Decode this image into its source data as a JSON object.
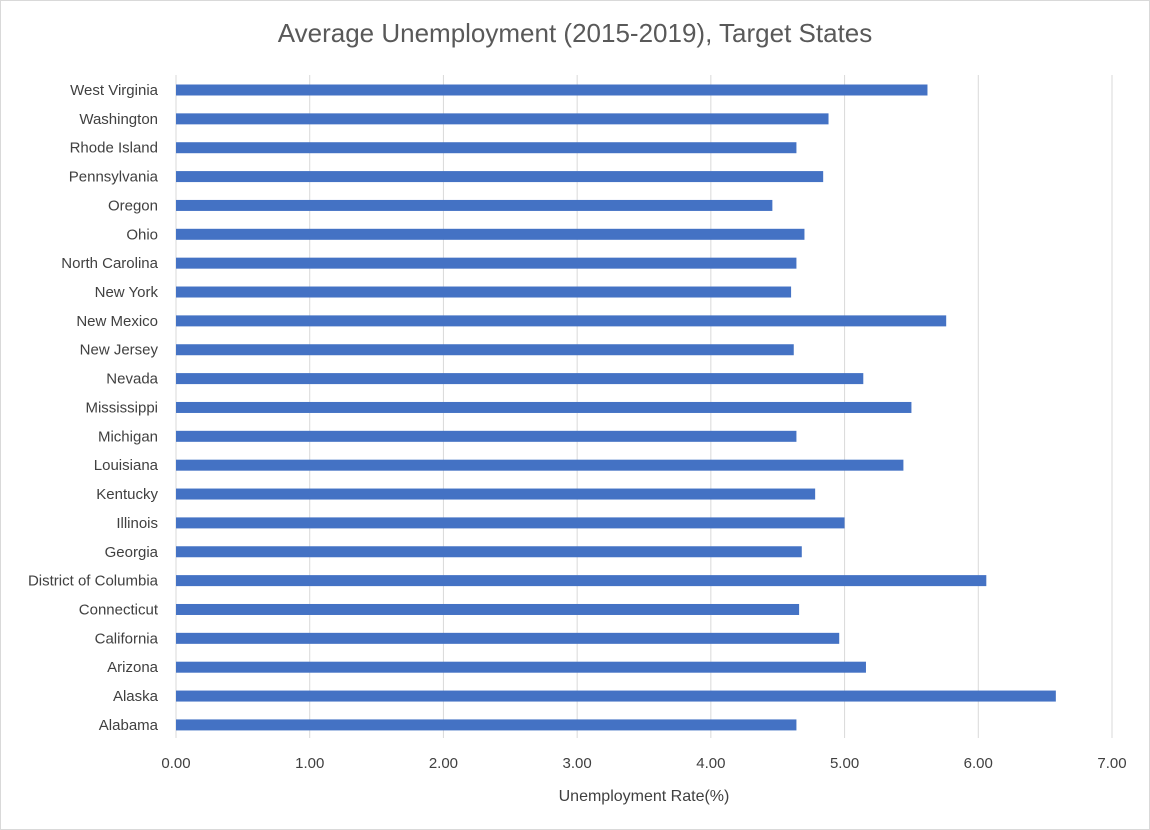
{
  "chart_data": {
    "type": "bar",
    "orientation": "horizontal",
    "title": "Average Unemployment (2015-2019), Target States",
    "xlabel": "Unemployment Rate(%)",
    "ylabel": "",
    "xlim": [
      0,
      7
    ],
    "x_ticks": [
      "0.00",
      "1.00",
      "2.00",
      "3.00",
      "4.00",
      "5.00",
      "6.00",
      "7.00"
    ],
    "grid": true,
    "legend": "none",
    "bar_color": "#4472c4",
    "grid_color": "#d9d9d9",
    "categories": [
      "West Virginia",
      "Washington",
      "Rhode Island",
      "Pennsylvania",
      "Oregon",
      "Ohio",
      "North Carolina",
      "New York",
      "New Mexico",
      "New Jersey",
      "Nevada",
      "Mississippi",
      "Michigan",
      "Louisiana",
      "Kentucky",
      "Illinois",
      "Georgia",
      "District of Columbia",
      "Connecticut",
      "California",
      "Arizona",
      "Alaska",
      "Alabama"
    ],
    "values": [
      5.62,
      4.88,
      4.64,
      4.84,
      4.46,
      4.7,
      4.64,
      4.6,
      5.76,
      4.62,
      5.14,
      5.5,
      4.64,
      5.44,
      4.78,
      5.0,
      4.68,
      6.06,
      4.66,
      4.96,
      5.16,
      6.58,
      4.64
    ]
  }
}
